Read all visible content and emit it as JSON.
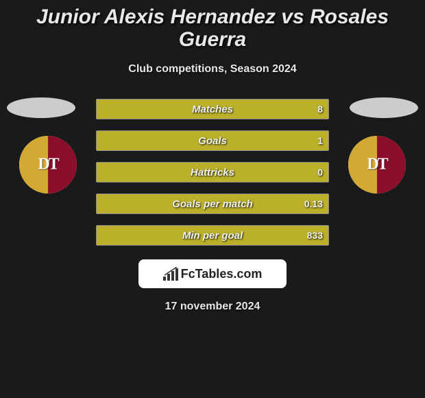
{
  "title": "Junior Alexis Hernandez vs Rosales Guerra",
  "subtitle": "Club competitions, Season 2024",
  "date": "17 november 2024",
  "brand": {
    "name": "FcTables.com",
    "icon": "chart"
  },
  "team_logo": {
    "gold_color": "#d4a933",
    "red_color": "#8b0e2a",
    "bg_color": "#f0f0f0",
    "text": "DT"
  },
  "avatar_placeholder_color": "#cccccc",
  "stats": [
    {
      "label": "Matches",
      "value": "8",
      "fill_color": "#bab02a",
      "fill_percent": 100
    },
    {
      "label": "Goals",
      "value": "1",
      "fill_color": "#bab02a",
      "fill_percent": 100
    },
    {
      "label": "Hattricks",
      "value": "0",
      "fill_color": "#bab02a",
      "fill_percent": 100
    },
    {
      "label": "Goals per match",
      "value": "0.13",
      "fill_color": "#bab02a",
      "fill_percent": 100
    },
    {
      "label": "Min per goal",
      "value": "833",
      "fill_color": "#bab02a",
      "fill_percent": 100
    }
  ],
  "colors": {
    "background": "#1a1a1a",
    "text_primary": "#e8e8e8",
    "bar_border": "#888888"
  }
}
